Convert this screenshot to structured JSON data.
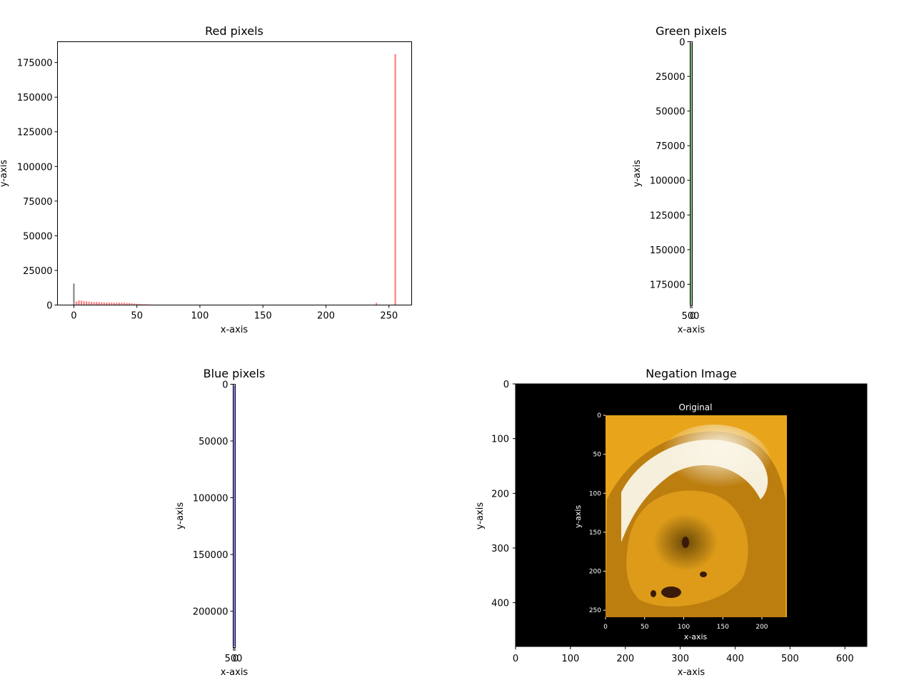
{
  "chart_data": [
    {
      "type": "bar",
      "title": "Red pixels",
      "xlabel": "x-axis",
      "ylabel": "y-axis",
      "xlim": [
        -13,
        268
      ],
      "ylim": [
        0,
        190000
      ],
      "xticks": [
        "0",
        "50",
        "100",
        "150",
        "200",
        "250"
      ],
      "yticks": [
        "0",
        "25000",
        "50000",
        "75000",
        "100000",
        "125000",
        "150000",
        "175000"
      ],
      "series": [
        {
          "color": "#ff0000",
          "x": [
            0,
            2,
            4,
            6,
            8,
            10,
            12,
            14,
            16,
            18,
            20,
            22,
            24,
            26,
            28,
            30,
            32,
            34,
            36,
            38,
            40,
            42,
            44,
            46,
            48,
            50,
            52,
            54,
            56,
            58,
            60,
            62,
            64,
            66,
            68,
            240,
            255
          ],
          "values": [
            15500,
            2500,
            3300,
            3100,
            2800,
            2600,
            2500,
            2300,
            2200,
            2200,
            2100,
            2000,
            1900,
            1900,
            1800,
            1800,
            1700,
            1700,
            1800,
            1700,
            1700,
            1600,
            1500,
            1300,
            1100,
            900,
            800,
            700,
            600,
            500,
            400,
            350,
            300,
            250,
            200,
            1600,
            181000
          ]
        }
      ]
    },
    {
      "type": "bar",
      "title": "Green pixels",
      "xlabel": "x-axis",
      "ylabel": "y-axis",
      "ylim": [
        0,
        190000
      ],
      "y_inverted": true,
      "xticks_overlapping": "500",
      "yticks": [
        "0",
        "25000",
        "50000",
        "75000",
        "100000",
        "125000",
        "150000",
        "175000"
      ],
      "series": [
        {
          "color": "#008000"
        }
      ]
    },
    {
      "type": "bar",
      "title": "Blue pixels",
      "xlabel": "x-axis",
      "ylabel": "y-axis",
      "ylim": [
        0,
        232000
      ],
      "y_inverted": true,
      "xticks_overlapping": "500",
      "yticks": [
        "0",
        "50000",
        "100000",
        "150000",
        "200000"
      ],
      "series": [
        {
          "color": "#0000ff"
        }
      ]
    },
    {
      "type": "image",
      "title": "Negation Image",
      "xlabel": "x-axis",
      "ylabel": "y-axis",
      "xlim": [
        0,
        640
      ],
      "ylim": [
        480,
        0
      ],
      "xticks": [
        "0",
        "100",
        "200",
        "300",
        "400",
        "500",
        "600"
      ],
      "yticks": [
        "0",
        "100",
        "200",
        "300",
        "400"
      ],
      "background": "#000000",
      "inset": {
        "title": "Original",
        "xlabel": "x-axis",
        "ylabel": "y-axis",
        "xlim": [
          0,
          232
        ],
        "ylim": [
          259,
          0
        ],
        "xticks": [
          "0",
          "50",
          "100",
          "150",
          "200"
        ],
        "yticks": [
          "0",
          "50",
          "100",
          "150",
          "200",
          "250"
        ],
        "colors": [
          "#e8a51c",
          "#f6efdc",
          "#b87a10",
          "#3a1a08"
        ]
      }
    }
  ]
}
